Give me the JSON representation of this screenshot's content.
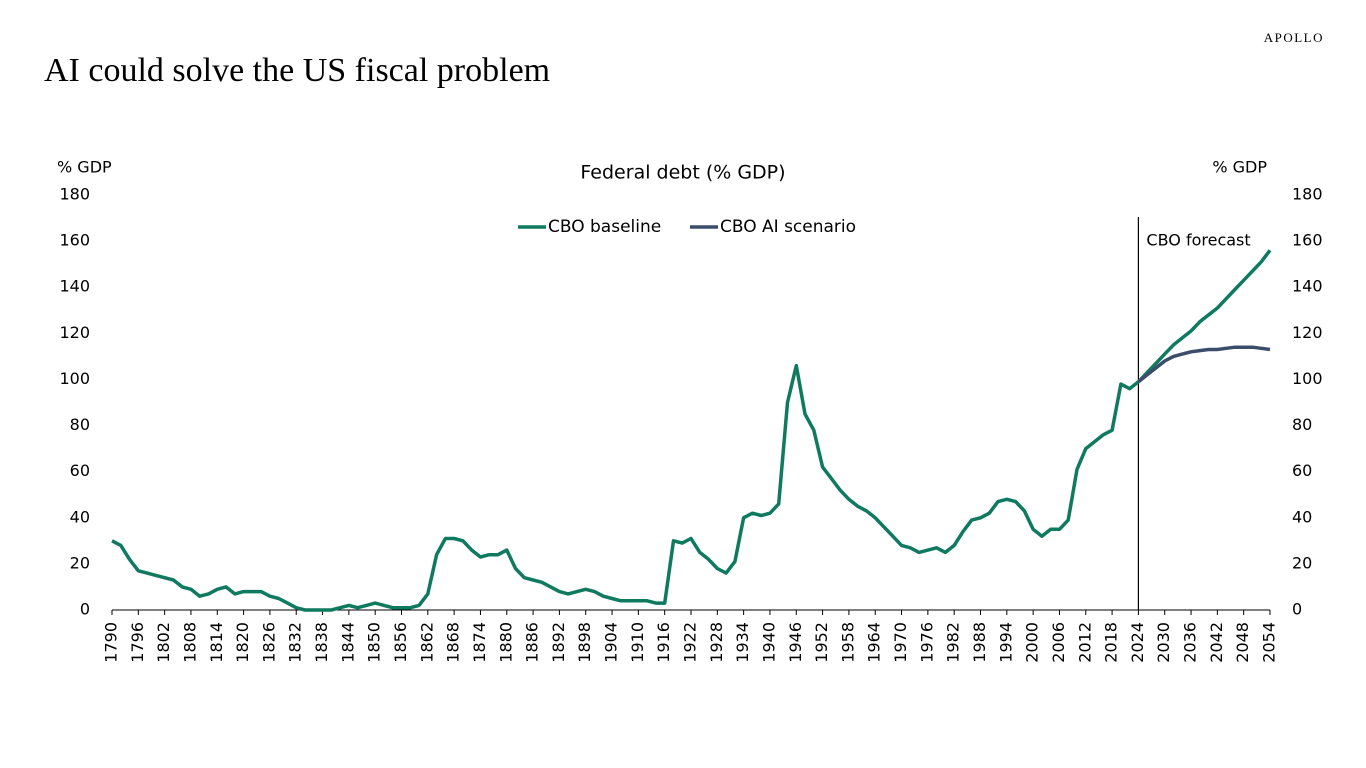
{
  "brand": "APOLLO",
  "page_title": "AI could solve the US fiscal problem",
  "chart_data": {
    "type": "line",
    "title": "Federal debt (% GDP)",
    "ylabel": "% GDP",
    "y2label": "% GDP",
    "x": [
      1790,
      1792,
      1794,
      1796,
      1798,
      1800,
      1802,
      1804,
      1806,
      1808,
      1810,
      1812,
      1814,
      1816,
      1818,
      1820,
      1822,
      1824,
      1826,
      1828,
      1830,
      1832,
      1834,
      1836,
      1838,
      1840,
      1842,
      1844,
      1846,
      1848,
      1850,
      1852,
      1854,
      1856,
      1858,
      1860,
      1862,
      1864,
      1866,
      1868,
      1870,
      1872,
      1874,
      1876,
      1878,
      1880,
      1882,
      1884,
      1886,
      1888,
      1890,
      1892,
      1894,
      1896,
      1898,
      1900,
      1902,
      1904,
      1906,
      1908,
      1910,
      1912,
      1914,
      1916,
      1918,
      1920,
      1922,
      1924,
      1926,
      1928,
      1930,
      1932,
      1934,
      1936,
      1938,
      1940,
      1942,
      1944,
      1946,
      1948,
      1950,
      1952,
      1954,
      1956,
      1958,
      1960,
      1962,
      1964,
      1966,
      1968,
      1970,
      1972,
      1974,
      1976,
      1978,
      1980,
      1982,
      1984,
      1986,
      1988,
      1990,
      1992,
      1994,
      1996,
      1998,
      2000,
      2002,
      2004,
      2006,
      2008,
      2010,
      2012,
      2014,
      2016,
      2018,
      2020,
      2022,
      2024,
      2026,
      2028,
      2030,
      2032,
      2034,
      2036,
      2038,
      2040,
      2042,
      2044,
      2046,
      2048,
      2050,
      2052,
      2054
    ],
    "series": [
      {
        "name": "CBO baseline",
        "color": "#0f7a5f",
        "values": [
          30,
          28,
          22,
          17,
          16,
          15,
          14,
          13,
          10,
          9,
          6,
          7,
          9,
          10,
          7,
          8,
          8,
          8,
          6,
          5,
          3,
          1,
          0,
          0,
          0,
          0,
          1,
          2,
          1,
          2,
          3,
          2,
          1,
          1,
          1,
          2,
          7,
          24,
          31,
          31,
          30,
          26,
          23,
          24,
          24,
          26,
          18,
          14,
          13,
          12,
          10,
          8,
          7,
          8,
          9,
          8,
          6,
          5,
          4,
          4,
          4,
          4,
          3,
          3,
          30,
          29,
          31,
          25,
          22,
          18,
          16,
          21,
          40,
          42,
          41,
          42,
          46,
          90,
          106,
          85,
          78,
          62,
          57,
          52,
          48,
          45,
          43,
          40,
          36,
          32,
          28,
          27,
          25,
          26,
          27,
          25,
          28,
          34,
          39,
          40,
          42,
          47,
          48,
          47,
          43,
          35,
          32,
          35,
          35,
          39,
          61,
          70,
          73,
          76,
          78,
          98,
          96,
          99,
          103,
          107,
          111,
          115,
          118,
          121,
          125,
          128,
          131,
          135,
          139,
          143,
          147,
          151,
          156
        ]
      },
      {
        "name": "CBO AI scenario",
        "color": "#3c4d6b",
        "values": [
          null,
          null,
          null,
          null,
          null,
          null,
          null,
          null,
          null,
          null,
          null,
          null,
          null,
          null,
          null,
          null,
          null,
          null,
          null,
          null,
          null,
          null,
          null,
          null,
          null,
          null,
          null,
          null,
          null,
          null,
          null,
          null,
          null,
          null,
          null,
          null,
          null,
          null,
          null,
          null,
          null,
          null,
          null,
          null,
          null,
          null,
          null,
          null,
          null,
          null,
          null,
          null,
          null,
          null,
          null,
          null,
          null,
          null,
          null,
          null,
          null,
          null,
          null,
          null,
          null,
          null,
          null,
          null,
          null,
          null,
          null,
          null,
          null,
          null,
          null,
          null,
          null,
          null,
          null,
          null,
          null,
          null,
          null,
          null,
          null,
          null,
          null,
          null,
          null,
          null,
          null,
          null,
          null,
          null,
          null,
          null,
          null,
          null,
          null,
          null,
          null,
          null,
          null,
          null,
          null,
          null,
          null,
          null,
          null,
          null,
          null,
          null,
          null,
          null,
          null,
          null,
          null,
          99,
          102,
          105,
          108,
          110,
          111,
          112,
          112.5,
          113,
          113,
          113.5,
          114,
          114,
          114,
          113.5,
          113
        ]
      }
    ],
    "xlim": [
      1790,
      2054
    ],
    "xticks": [
      1790,
      1796,
      1802,
      1808,
      1814,
      1820,
      1826,
      1832,
      1838,
      1844,
      1850,
      1856,
      1862,
      1868,
      1874,
      1880,
      1886,
      1892,
      1898,
      1904,
      1910,
      1916,
      1922,
      1928,
      1934,
      1940,
      1946,
      1952,
      1958,
      1964,
      1970,
      1976,
      1982,
      1988,
      1994,
      2000,
      2006,
      2012,
      2018,
      2024,
      2030,
      2036,
      2042,
      2048,
      2054
    ],
    "ylim": [
      0,
      180
    ],
    "yticks": [
      0,
      20,
      40,
      60,
      80,
      100,
      120,
      140,
      160,
      180
    ],
    "y2lim": [
      0,
      180
    ],
    "y2ticks": [
      0,
      20,
      40,
      60,
      80,
      100,
      120,
      140,
      160,
      180
    ],
    "annotations": [
      {
        "x": 2024,
        "text": "CBO forecast"
      }
    ],
    "legend": "top"
  }
}
